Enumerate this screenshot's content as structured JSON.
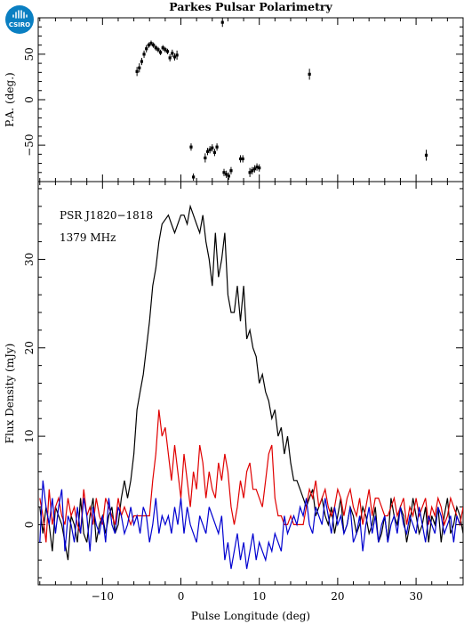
{
  "header": {
    "title": "Parkes Pulsar Polarimetry",
    "logo_text": "CSIRO",
    "logo_color": "#0a7fc2"
  },
  "chart_data": [
    {
      "type": "scatter",
      "panel": "pa",
      "title": "Parkes Pulsar Polarimetry",
      "ylabel": "P.A. (deg.)",
      "xlim": [
        -18.2,
        36.0
      ],
      "ylim": [
        -90,
        90
      ],
      "xticks": [
        -10,
        0,
        10,
        20,
        30
      ],
      "yticks": [
        -50,
        0,
        50
      ],
      "ytick_labels": [
        "−50",
        "0",
        "50"
      ],
      "series": [
        {
          "color": "#000000",
          "x": [
            -5.6,
            -5.3,
            -5.0,
            -4.7,
            -4.4,
            -4.1,
            -3.8,
            -3.5,
            -3.2,
            -2.9,
            -2.6,
            -2.3,
            -2.0,
            -1.7,
            -1.4,
            -1.1,
            -0.8,
            -0.5,
            5.3,
            16.4,
            1.3,
            1.6,
            3.1,
            3.4,
            3.7,
            4.0,
            4.3,
            4.6,
            5.5,
            5.8,
            6.1,
            6.4,
            7.6,
            7.9,
            8.8,
            9.1,
            9.4,
            9.7,
            10.0,
            31.3
          ],
          "y": [
            31,
            35,
            42,
            50,
            56,
            60,
            62,
            60,
            57,
            55,
            52,
            57,
            55,
            53,
            46,
            51,
            47,
            49,
            85,
            28,
            -52,
            -85,
            -64,
            -57,
            -55,
            -53,
            -58,
            -52,
            -80,
            -82,
            -84,
            -78,
            -65,
            -65,
            -80,
            -78,
            -76,
            -74,
            -75,
            -61
          ],
          "err": [
            5,
            5,
            4,
            4,
            4,
            3,
            3,
            3,
            3,
            3,
            3,
            3,
            3,
            3,
            4,
            4,
            4,
            5,
            5,
            6,
            4,
            4,
            5,
            4,
            4,
            4,
            4,
            4,
            4,
            4,
            4,
            4,
            4,
            4,
            5,
            4,
            4,
            4,
            4,
            6
          ]
        }
      ]
    },
    {
      "type": "line",
      "panel": "profile",
      "annotations": [
        "PSR J1820−1818",
        "1379 MHz"
      ],
      "xlabel": "Pulse Longitude (deg)",
      "ylabel": "Flux Density (mJy)",
      "xlim": [
        -18.2,
        36.0
      ],
      "ylim": [
        -6.8,
        38.8
      ],
      "xticks": [
        -10,
        0,
        10,
        20,
        30
      ],
      "xtick_labels": [
        "−10",
        "0",
        "10",
        "20",
        "30"
      ],
      "yticks": [
        0,
        10,
        20,
        30
      ],
      "x_start": -18.0,
      "x_step": 0.4,
      "series": [
        {
          "color": "#000000",
          "values": [
            2,
            -1,
            2,
            0,
            -3,
            2,
            1,
            0,
            -2,
            -4,
            1,
            0,
            -2,
            3,
            -1,
            -2,
            1,
            3,
            -2,
            0,
            1,
            -1,
            1,
            2,
            -1,
            0,
            3,
            5,
            3,
            5,
            8,
            13,
            15,
            17,
            20,
            23,
            27,
            29,
            32,
            34,
            34.5,
            35,
            34,
            33,
            34,
            35,
            35,
            34,
            36,
            35,
            34,
            33,
            35,
            32,
            30,
            27,
            33,
            28,
            30,
            33,
            26,
            24,
            24,
            27,
            23,
            27,
            21,
            22,
            20,
            19,
            16,
            17,
            15,
            14,
            12,
            13,
            10,
            11,
            8,
            10,
            7,
            5,
            5,
            4,
            3,
            2,
            3,
            4,
            1,
            2,
            3,
            1,
            0,
            2,
            -1,
            1,
            3,
            -1,
            0,
            2,
            1,
            -1,
            0,
            2,
            1,
            -1,
            0,
            2,
            -2,
            -1,
            1,
            -2,
            3,
            1,
            0,
            2,
            1,
            -2,
            0,
            3,
            1,
            -1,
            0,
            2,
            -2,
            1,
            0,
            2,
            -2,
            1,
            3,
            -1,
            0,
            2,
            1,
            -1
          ]
        },
        {
          "color": "#e00000",
          "values": [
            3,
            1,
            -2,
            4,
            0,
            2,
            3,
            1,
            0,
            3,
            1,
            2,
            0,
            -1,
            4,
            1,
            2,
            0,
            3,
            1,
            0,
            3,
            2,
            1,
            0,
            3,
            1,
            2,
            1,
            0,
            1,
            1,
            1,
            1,
            1,
            1,
            5,
            8,
            13,
            10,
            11,
            8,
            5,
            9,
            6,
            3,
            8,
            5,
            2,
            6,
            4,
            9,
            7,
            3,
            6,
            4,
            3,
            7,
            5,
            8,
            6,
            2,
            0,
            2,
            5,
            3,
            6,
            7,
            4,
            4,
            3,
            2,
            5,
            8,
            9,
            3,
            1,
            1,
            0,
            0,
            1,
            0,
            0,
            0,
            0,
            2,
            4,
            3,
            5,
            2,
            3,
            4,
            2,
            1,
            2,
            4,
            3,
            1,
            3,
            4,
            2,
            1,
            3,
            0,
            2,
            4,
            1,
            3,
            3,
            2,
            1,
            1,
            2,
            3,
            1,
            2,
            3,
            0,
            2,
            1,
            3,
            1,
            2,
            3,
            0,
            2,
            1,
            3,
            2,
            0,
            1,
            3,
            2,
            1,
            0,
            2
          ]
        },
        {
          "color": "#0000d0",
          "values": [
            -2,
            5,
            2,
            0,
            3,
            -1,
            2,
            4,
            -3,
            1,
            0,
            -2,
            2,
            -1,
            3,
            1,
            -3,
            2,
            0,
            -1,
            1,
            -2,
            3,
            0,
            -1,
            2,
            1,
            -1,
            0,
            2,
            0,
            1,
            -1,
            2,
            1,
            -2,
            0,
            3,
            -1,
            1,
            0,
            1,
            -1,
            2,
            0,
            3,
            -1,
            2,
            0,
            -1,
            -2,
            1,
            0,
            -1,
            2,
            1,
            0,
            -1,
            1,
            -4,
            -2,
            -5,
            -3,
            -1,
            -4,
            -2,
            -5,
            -3,
            -1,
            -4,
            -2,
            -3,
            -4,
            -2,
            -3,
            -1,
            -2,
            -3,
            1,
            -1,
            0,
            1,
            0,
            2,
            1,
            3,
            0,
            -1,
            2,
            1,
            0,
            3,
            1,
            -1,
            2,
            0,
            1,
            -1,
            0,
            2,
            -2,
            -1,
            1,
            -3,
            0,
            2,
            -1,
            1,
            -2,
            0,
            1,
            -2,
            0,
            1,
            -1,
            2,
            0,
            -1,
            1,
            0,
            -1,
            2,
            0,
            -2,
            1,
            0,
            -1,
            2,
            1,
            -1,
            0,
            1,
            -2,
            1,
            0
          ]
        }
      ]
    }
  ]
}
